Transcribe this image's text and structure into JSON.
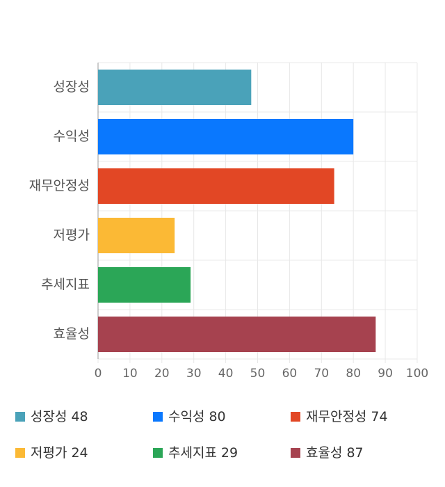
{
  "chart_data": {
    "type": "bar",
    "orientation": "horizontal",
    "categories": [
      "성장성",
      "수익성",
      "재무안정성",
      "저평가",
      "추세지표",
      "효율성"
    ],
    "values": [
      48,
      80,
      74,
      24,
      29,
      87
    ],
    "colors": [
      "#4aa2b9",
      "#0a78fe",
      "#e24725",
      "#fbb935",
      "#2ba657",
      "#a6424f"
    ],
    "xlim": [
      0,
      100
    ],
    "xticks": [
      0,
      10,
      20,
      30,
      40,
      50,
      60,
      70,
      80,
      90,
      100
    ],
    "grid": true
  }
}
